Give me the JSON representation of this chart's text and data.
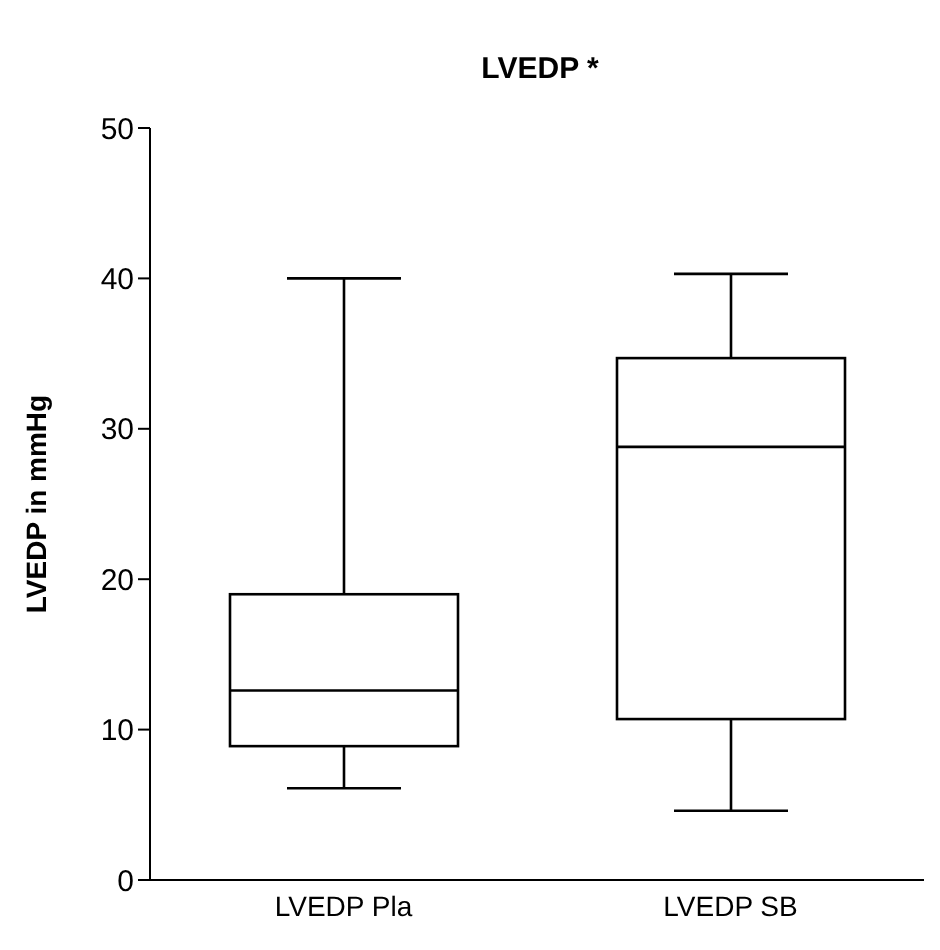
{
  "chart_data": {
    "type": "box",
    "title": "LVEDP *",
    "ylabel": "LVEDP in mmHg",
    "categories": [
      "LVEDP Pla",
      "LVEDP SB"
    ],
    "boxes": [
      {
        "low": 6.1,
        "q1": 8.9,
        "median": 12.6,
        "q3": 19.0,
        "high": 40
      },
      {
        "low": 4.6,
        "q1": 10.7,
        "median": 28.8,
        "q3": 34.7,
        "high": 40.3
      }
    ],
    "color": "#000000",
    "ylim": [
      0,
      50
    ],
    "yticks": [
      0,
      10,
      20,
      30,
      40,
      50
    ],
    "grid": false
  }
}
